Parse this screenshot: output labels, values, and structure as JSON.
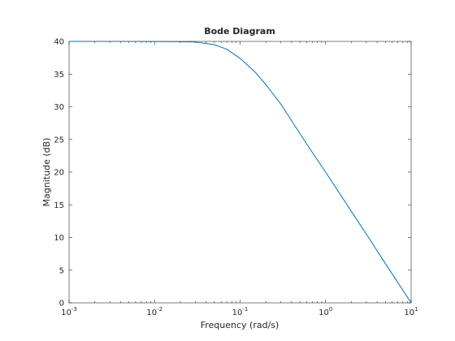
{
  "chart_data": {
    "type": "line",
    "title": "Bode Diagram",
    "xlabel": "Frequency  (rad/s)",
    "ylabel": "Magnitude (dB)",
    "xscale": "log",
    "xlim": [
      0.001,
      10
    ],
    "ylim": [
      0,
      40
    ],
    "grid": false,
    "x_ticks": [
      {
        "base": "10",
        "exp": "-3",
        "value": 0.001
      },
      {
        "base": "10",
        "exp": "-2",
        "value": 0.01
      },
      {
        "base": "10",
        "exp": "-1",
        "value": 0.1
      },
      {
        "base": "10",
        "exp": "0",
        "value": 1
      },
      {
        "base": "10",
        "exp": "1",
        "value": 10
      }
    ],
    "y_ticks": [
      "0",
      "5",
      "10",
      "15",
      "20",
      "25",
      "30",
      "35",
      "40"
    ],
    "series": [
      {
        "color": "#0072bd",
        "x": [
          0.001,
          0.002,
          0.005,
          0.01,
          0.02,
          0.03,
          0.05,
          0.07,
          0.1,
          0.15,
          0.2,
          0.3,
          0.5,
          0.7,
          1,
          1.5,
          2,
          3,
          5,
          7,
          10
        ],
        "y": [
          40,
          40,
          40,
          39.99,
          39.95,
          39.9,
          39.5,
          38.8,
          37.4,
          35.3,
          33.4,
          30.4,
          25.9,
          23.0,
          20.0,
          16.5,
          14.0,
          10.5,
          6.0,
          3.1,
          0
        ]
      }
    ]
  }
}
